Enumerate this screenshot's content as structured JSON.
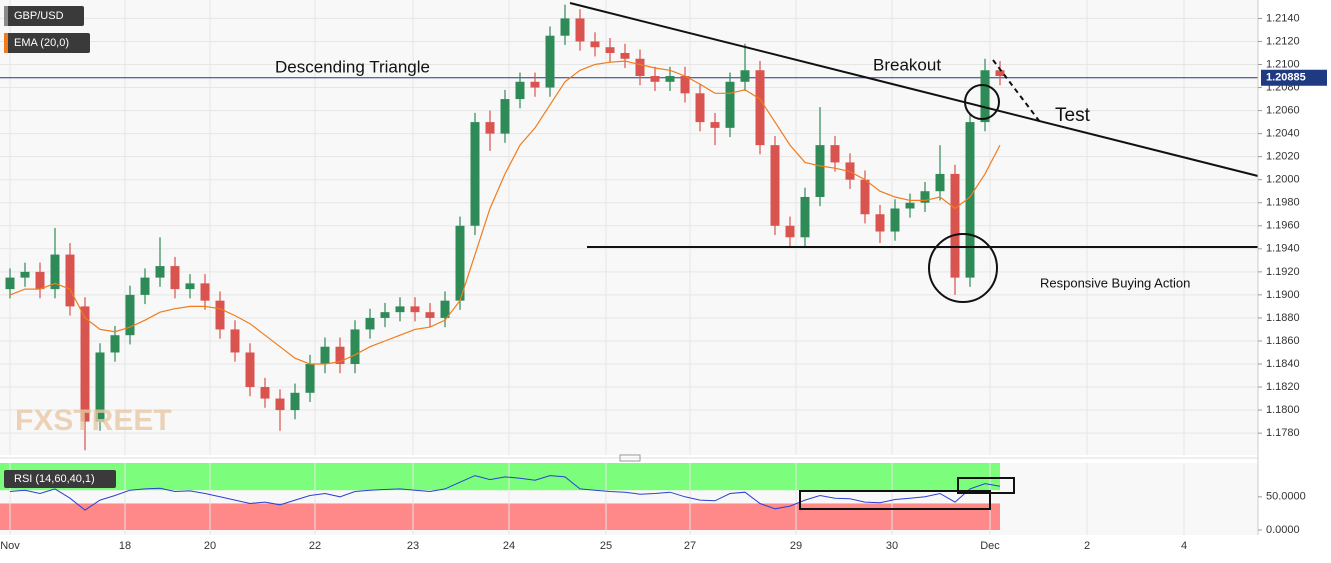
{
  "chart_data": {
    "type": "candlestick",
    "x": [
      1,
      2.5,
      4,
      5.5,
      7,
      8.5,
      10,
      11.5,
      13,
      14.5,
      16,
      17.5,
      19,
      20.5,
      22,
      23.5,
      25,
      26.5,
      28,
      29.5,
      31,
      32.5,
      34,
      35.5,
      37,
      38.5,
      40,
      41.5,
      43,
      44.5,
      46,
      47.5,
      49,
      50.5,
      52,
      53.5,
      55,
      56.5,
      58,
      59.5,
      61,
      62.5,
      64,
      65.5,
      67,
      68.5,
      70,
      71.5,
      73,
      74.5,
      76,
      77.5,
      79,
      80.5,
      82,
      83.5,
      85,
      86.5,
      88,
      89.5,
      91,
      92.5,
      94,
      95.5,
      97,
      98.5,
      100
    ],
    "series": [
      {
        "name": "GBP/USD",
        "type": "candlestick",
        "up_color": "#2e8b57",
        "down_color": "#d9534f",
        "open": [
          1.1905,
          1.1915,
          1.192,
          1.1905,
          1.1935,
          1.189,
          1.179,
          1.185,
          1.1865,
          1.19,
          1.1915,
          1.1925,
          1.1905,
          1.191,
          1.1895,
          1.187,
          1.185,
          1.182,
          1.181,
          1.18,
          1.1815,
          1.184,
          1.1855,
          1.184,
          1.187,
          1.188,
          1.1885,
          1.189,
          1.1885,
          1.188,
          1.1895,
          1.196,
          1.205,
          1.204,
          1.207,
          1.2085,
          1.208,
          1.2125,
          1.214,
          1.212,
          1.2115,
          1.211,
          1.2105,
          1.209,
          1.2085,
          1.209,
          1.2075,
          1.205,
          1.2045,
          1.2085,
          1.2095,
          1.203,
          1.196,
          1.195,
          1.1985,
          1.203,
          1.2015,
          1.2,
          1.197,
          1.1955,
          1.1975,
          1.198,
          1.199,
          1.2005,
          1.1915,
          1.205,
          1.2095
        ],
        "high": [
          1.1923,
          1.1928,
          1.1928,
          1.1958,
          1.1945,
          1.1898,
          1.1858,
          1.1873,
          1.1908,
          1.1923,
          1.195,
          1.1933,
          1.1918,
          1.1918,
          1.1903,
          1.1878,
          1.1858,
          1.1828,
          1.1818,
          1.1823,
          1.1848,
          1.1863,
          1.1863,
          1.1878,
          1.1888,
          1.1893,
          1.1898,
          1.1898,
          1.1893,
          1.1903,
          1.1968,
          1.2058,
          1.206,
          1.2078,
          1.2093,
          1.2093,
          1.2133,
          1.2152,
          1.2148,
          1.2128,
          1.2123,
          1.2118,
          1.2113,
          1.2098,
          1.2098,
          1.2098,
          1.2083,
          1.2058,
          1.2093,
          1.2118,
          1.2103,
          1.2038,
          1.1968,
          1.1993,
          1.2063,
          1.2038,
          1.2023,
          1.2008,
          1.1978,
          1.1983,
          1.1988,
          1.1998,
          1.203,
          1.2013,
          1.2058,
          1.2105,
          1.2103
        ],
        "low": [
          1.1897,
          1.1907,
          1.1897,
          1.1897,
          1.1882,
          1.1765,
          1.1782,
          1.1842,
          1.1857,
          1.1892,
          1.1907,
          1.1897,
          1.1897,
          1.1887,
          1.1862,
          1.1842,
          1.1812,
          1.1802,
          1.1782,
          1.1792,
          1.1807,
          1.1832,
          1.1832,
          1.1832,
          1.1862,
          1.1872,
          1.1877,
          1.1877,
          1.1872,
          1.1872,
          1.1887,
          1.1952,
          1.2025,
          1.2032,
          1.2062,
          1.2072,
          1.2072,
          1.2117,
          1.2112,
          1.2107,
          1.2102,
          1.2097,
          1.2082,
          1.2077,
          1.2077,
          1.2067,
          1.2042,
          1.203,
          1.2037,
          1.2077,
          1.2022,
          1.1952,
          1.1942,
          1.1942,
          1.1977,
          1.2007,
          1.1992,
          1.1962,
          1.1945,
          1.1947,
          1.1967,
          1.1972,
          1.1982,
          1.19,
          1.1907,
          1.2042,
          1.2082
        ],
        "close": [
          1.1915,
          1.192,
          1.1905,
          1.1935,
          1.189,
          1.179,
          1.185,
          1.1865,
          1.19,
          1.1915,
          1.1925,
          1.1905,
          1.191,
          1.1895,
          1.187,
          1.185,
          1.182,
          1.181,
          1.18,
          1.1815,
          1.184,
          1.1855,
          1.184,
          1.187,
          1.188,
          1.1885,
          1.189,
          1.1885,
          1.188,
          1.1895,
          1.196,
          1.205,
          1.204,
          1.207,
          1.2085,
          1.208,
          1.2125,
          1.214,
          1.212,
          1.2115,
          1.211,
          1.2105,
          1.209,
          1.2085,
          1.209,
          1.2075,
          1.205,
          1.2045,
          1.2085,
          1.2095,
          1.203,
          1.196,
          1.195,
          1.1985,
          1.203,
          1.2015,
          1.2,
          1.197,
          1.1955,
          1.1975,
          1.198,
          1.199,
          1.2005,
          1.1915,
          1.205,
          1.2095,
          1.209
        ]
      },
      {
        "name": "EMA (20,0)",
        "type": "line",
        "color": "#f07c1e",
        "values": [
          1.19,
          1.1905,
          1.1905,
          1.191,
          1.1905,
          1.188,
          1.187,
          1.1868,
          1.1872,
          1.1878,
          1.1885,
          1.1888,
          1.189,
          1.189,
          1.1888,
          1.1882,
          1.1875,
          1.1865,
          1.1855,
          1.1845,
          1.184,
          1.184,
          1.1842,
          1.1848,
          1.1855,
          1.186,
          1.1865,
          1.187,
          1.1872,
          1.1878,
          1.1895,
          1.1935,
          1.1975,
          1.2005,
          1.203,
          1.2045,
          1.2065,
          1.2085,
          1.2095,
          1.21,
          1.2102,
          1.2103,
          1.21,
          1.2097,
          1.2095,
          1.209,
          1.2083,
          1.2075,
          1.2075,
          1.2078,
          1.207,
          1.205,
          1.203,
          1.2015,
          1.2012,
          1.201,
          1.2007,
          1.2,
          1.199,
          1.1985,
          1.1982,
          1.1982,
          1.1985,
          1.1975,
          1.1985,
          1.2005,
          1.203
        ]
      }
    ],
    "xlim": [
      0,
      125.8
    ],
    "ylim": [
      1.1761,
      1.2156
    ],
    "xticks": [
      {
        "value": 1,
        "label": "Nov"
      },
      {
        "value": 12.5,
        "label": "18"
      },
      {
        "value": 21,
        "label": "20"
      },
      {
        "value": 31.5,
        "label": "22"
      },
      {
        "value": 41.3,
        "label": "23"
      },
      {
        "value": 50.9,
        "label": "24"
      },
      {
        "value": 60.6,
        "label": "25"
      },
      {
        "value": 69,
        "label": "27"
      },
      {
        "value": 79.6,
        "label": "29"
      },
      {
        "value": 89.2,
        "label": "30"
      },
      {
        "value": 99,
        "label": "Dec"
      },
      {
        "value": 108.7,
        "label": "2"
      },
      {
        "value": 118.4,
        "label": "4"
      }
    ],
    "yticks": [
      {
        "value": 1.214,
        "label": "1.2140"
      },
      {
        "value": 1.212,
        "label": "1.2120"
      },
      {
        "value": 1.21,
        "label": "1.2100"
      },
      {
        "value": 1.208,
        "label": "1.2080"
      },
      {
        "value": 1.206,
        "label": "1.2060"
      },
      {
        "value": 1.204,
        "label": "1.2040"
      },
      {
        "value": 1.202,
        "label": "1.2020"
      },
      {
        "value": 1.2,
        "label": "1.2000"
      },
      {
        "value": 1.198,
        "label": "1.1980"
      },
      {
        "value": 1.196,
        "label": "1.1960"
      },
      {
        "value": 1.194,
        "label": "1.1940"
      },
      {
        "value": 1.192,
        "label": "1.1920"
      },
      {
        "value": 1.19,
        "label": "1.1900"
      },
      {
        "value": 1.188,
        "label": "1.1880"
      },
      {
        "value": 1.186,
        "label": "1.1860"
      },
      {
        "value": 1.184,
        "label": "1.1840"
      },
      {
        "value": 1.182,
        "label": "1.1820"
      },
      {
        "value": 1.18,
        "label": "1.1800"
      },
      {
        "value": 1.178,
        "label": "1.1780"
      }
    ],
    "grid": true,
    "last_price": 1.20885,
    "annotations": [
      "Descending Triangle",
      "Breakout",
      "Test",
      "Responsive  Buying Action"
    ],
    "watermark": "FXSTREET",
    "rsi": {
      "name": "RSI (14,60,40,1)",
      "color": "#2b3fd6",
      "ylim": [
        0,
        101
      ],
      "yticks": [
        {
          "value": 0,
          "label": "0.0000"
        },
        {
          "value": 50,
          "label": "50.0000"
        }
      ],
      "upper": 60,
      "lower": 40,
      "values": [
        58,
        60,
        55,
        62,
        48,
        30,
        45,
        52,
        60,
        62,
        63,
        58,
        59,
        55,
        50,
        45,
        40,
        42,
        38,
        45,
        52,
        55,
        50,
        58,
        60,
        61,
        62,
        60,
        58,
        62,
        72,
        82,
        76,
        80,
        78,
        75,
        82,
        80,
        62,
        60,
        58,
        57,
        54,
        55,
        57,
        50,
        45,
        44,
        55,
        57,
        40,
        32,
        36,
        45,
        52,
        48,
        47,
        42,
        41,
        46,
        48,
        50,
        55,
        42,
        62,
        70,
        66
      ]
    }
  }
}
